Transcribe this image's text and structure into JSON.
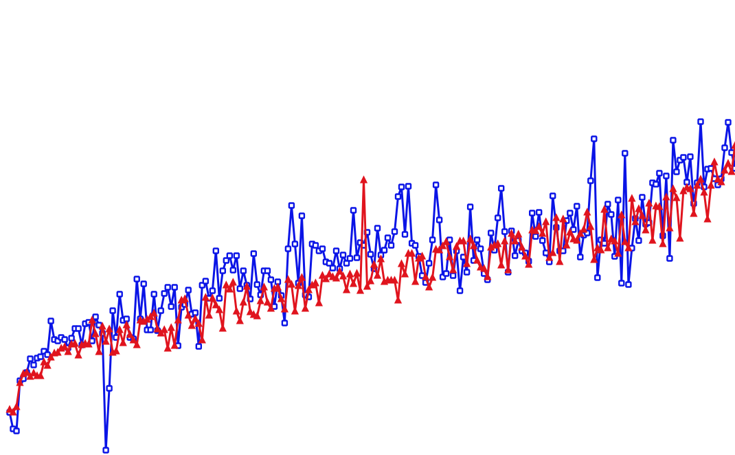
{
  "chart_data": {
    "type": "line",
    "title": "",
    "xlabel": "",
    "ylabel": "",
    "grid": false,
    "legend": "none",
    "xlim": [
      0,
      211
    ],
    "ylim": [
      0,
      650
    ],
    "series": [
      {
        "marker": "square",
        "color": "#0a14e6",
        "values": [
          62,
          38,
          35,
          108,
          111,
          120,
          140,
          131,
          141,
          143,
          151,
          146,
          195,
          168,
          166,
          171,
          168,
          156,
          170,
          184,
          184,
          160,
          191,
          193,
          166,
          201,
          189,
          177,
          7,
          97,
          210,
          171,
          234,
          196,
          198,
          171,
          169,
          256,
          198,
          249,
          182,
          182,
          234,
          181,
          210,
          235,
          244,
          216,
          244,
          159,
          215,
          219,
          240,
          205,
          207,
          158,
          247,
          253,
          228,
          239,
          297,
          228,
          268,
          283,
          290,
          269,
          290,
          242,
          268,
          247,
          227,
          293,
          248,
          233,
          268,
          268,
          255,
          216,
          252,
          232,
          192,
          300,
          363,
          307,
          250,
          348,
          233,
          230,
          307,
          305,
          297,
          300,
          281,
          279,
          272,
          297,
          271,
          291,
          279,
          286,
          356,
          287,
          309,
          305,
          324,
          292,
          271,
          330,
          291,
          298,
          316,
          305,
          325,
          376,
          390,
          321,
          391,
          308,
          305,
          289,
          261,
          251,
          279,
          313,
          393,
          342,
          259,
          264,
          313,
          261,
          297,
          239,
          288,
          266,
          361,
          283,
          313,
          300,
          264,
          255,
          323,
          298,
          345,
          388,
          325,
          266,
          326,
          290,
          312,
          297,
          294,
          282,
          352,
          318,
          353,
          312,
          294,
          281,
          377,
          331,
          297,
          297,
          341,
          352,
          328,
          362,
          288,
          320,
          323,
          399,
          460,
          258,
          313,
          308,
          365,
          350,
          289,
          371,
          250,
          439,
          248,
          301,
          344,
          312,
          375,
          336,
          338,
          396,
          394,
          410,
          319,
          406,
          286,
          458,
          412,
          429,
          433,
          397,
          434,
          366,
          396,
          485,
          390,
          416,
          417,
          402,
          393,
          402,
          447,
          484,
          440,
          417,
          506,
          459,
          592,
          456,
          497,
          558,
          523,
          599
        ]
      },
      {
        "marker": "triangle",
        "color": "#e0141e",
        "values": [
          66,
          62,
          70,
          105,
          118,
          120,
          114,
          119,
          115,
          115,
          135,
          130,
          142,
          148,
          149,
          155,
          157,
          150,
          161,
          162,
          145,
          160,
          162,
          161,
          196,
          176,
          150,
          187,
          165,
          183,
          149,
          151,
          182,
          163,
          189,
          175,
          167,
          160,
          196,
          194,
          197,
          201,
          206,
          183,
          177,
          182,
          155,
          185,
          159,
          196,
          225,
          227,
          203,
          188,
          198,
          191,
          167,
          229,
          203,
          228,
          218,
          211,
          184,
          247,
          241,
          251,
          209,
          195,
          222,
          245,
          208,
          204,
          202,
          224,
          244,
          222,
          213,
          242,
          244,
          227,
          212,
          255,
          248,
          209,
          246,
          258,
          213,
          240,
          247,
          250,
          221,
          261,
          256,
          263,
          259,
          257,
          267,
          260,
          240,
          263,
          249,
          264,
          239,
          400,
          245,
          253,
          277,
          261,
          285,
          252,
          254,
          254,
          254,
          225,
          278,
          263,
          293,
          293,
          252,
          286,
          289,
          259,
          244,
          258,
          299,
          298,
          304,
          310,
          288,
          269,
          303,
          311,
          311,
          278,
          314,
          304,
          283,
          273,
          271,
          259,
          302,
          305,
          307,
          276,
          311,
          269,
          322,
          311,
          321,
          302,
          289,
          277,
          327,
          326,
          332,
          322,
          339,
          287,
          294,
          345,
          281,
          343,
          305,
          324,
          314,
          312,
          322,
          328,
          353,
          332,
          284,
          301,
          298,
          357,
          301,
          314,
          311,
          293,
          349,
          310,
          301,
          373,
          339,
          358,
          348,
          327,
          366,
          312,
          362,
          361,
          307,
          375,
          330,
          387,
          374,
          315,
          384,
          389,
          387,
          351,
          392,
          401,
          382,
          343,
          392,
          426,
          401,
          397,
          414,
          424,
          412,
          450,
          455,
          445,
          521,
          442,
          532
        ]
      }
    ]
  }
}
